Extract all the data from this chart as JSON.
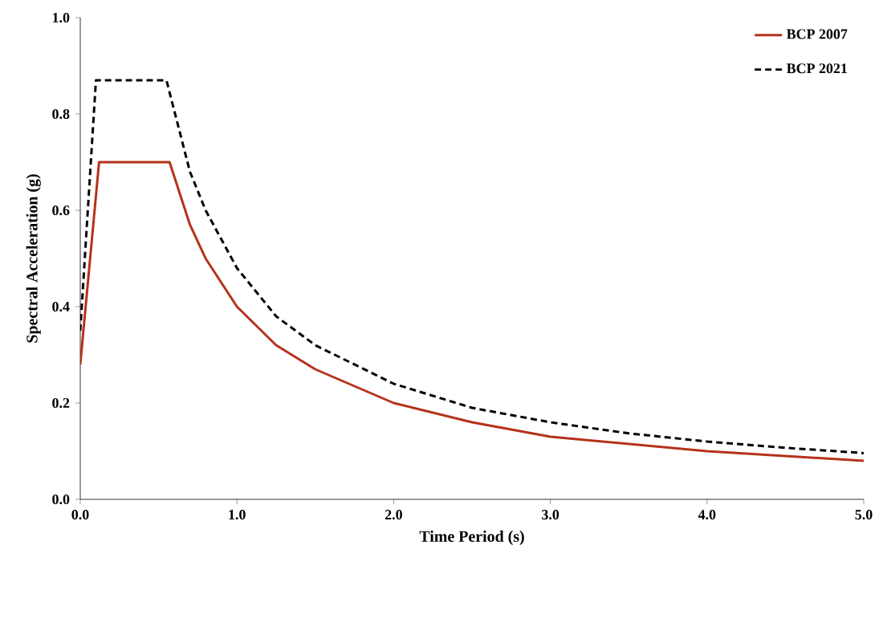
{
  "chart_data": {
    "type": "line",
    "xlabel": "Time Period (s)",
    "ylabel": "Spectral Acceleration (g)",
    "xlim": [
      0,
      5
    ],
    "ylim": [
      0,
      1
    ],
    "xticks": [
      {
        "value": 0,
        "label": "0.0"
      },
      {
        "value": 1,
        "label": "1.0"
      },
      {
        "value": 2,
        "label": "2.0"
      },
      {
        "value": 3,
        "label": "3.0"
      },
      {
        "value": 4,
        "label": "4.0"
      },
      {
        "value": 5,
        "label": "5.0"
      }
    ],
    "yticks": [
      {
        "value": 0,
        "label": "0.0"
      },
      {
        "value": 0.2,
        "label": "0.2"
      },
      {
        "value": 0.4,
        "label": "0.4"
      },
      {
        "value": 0.6,
        "label": "0.6"
      },
      {
        "value": 0.8,
        "label": "0.8"
      },
      {
        "value": 1,
        "label": "1.0"
      }
    ],
    "grid": false,
    "legend": "top right",
    "marker": "none",
    "series": [
      {
        "name": "BCP 2007",
        "color": "#b5321b",
        "line_style": "solid",
        "x": [
          0,
          0.12,
          0.57,
          0.7,
          0.8,
          1,
          1.25,
          1.5,
          2,
          2.5,
          3,
          3.5,
          4,
          4.5,
          5
        ],
        "values": [
          0.28,
          0.7,
          0.7,
          0.57,
          0.5,
          0.4,
          0.32,
          0.27,
          0.2,
          0.16,
          0.13,
          0.115,
          0.1,
          0.09,
          0.08
        ]
      },
      {
        "name": "BCP 2021",
        "color": "#000000",
        "line_style": "dashed",
        "x": [
          0,
          0.1,
          0.55,
          0.7,
          0.8,
          1,
          1.25,
          1.5,
          2,
          2.5,
          3,
          3.5,
          4,
          4.5,
          5
        ],
        "values": [
          0.35,
          0.87,
          0.87,
          0.68,
          0.6,
          0.48,
          0.38,
          0.32,
          0.24,
          0.19,
          0.16,
          0.137,
          0.12,
          0.107,
          0.096
        ]
      }
    ]
  }
}
